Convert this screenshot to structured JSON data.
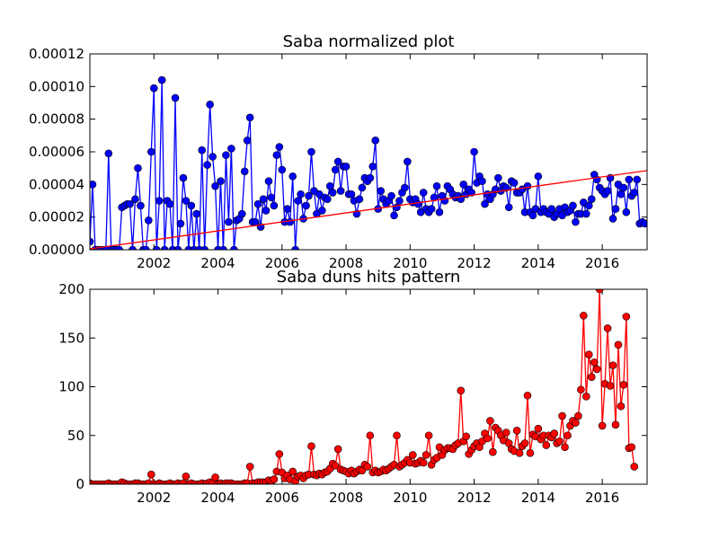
{
  "chart_data": [
    {
      "type": "line",
      "title": "Saba normalized plot",
      "xlabel": "",
      "ylabel": "",
      "xlim": [
        2000.0,
        2017.4
      ],
      "ylim": [
        0,
        0.00012
      ],
      "x_ticks": [
        2002,
        2004,
        2006,
        2008,
        2010,
        2012,
        2014,
        2016
      ],
      "x_tick_labels": [
        "2002",
        "2004",
        "2006",
        "2008",
        "2010",
        "2012",
        "2014",
        "2016"
      ],
      "y_ticks": [
        0,
        2e-05,
        4e-05,
        6e-05,
        8e-05,
        0.0001,
        0.00012
      ],
      "y_tick_labels": [
        "0.00000",
        "0.00002",
        "0.00004",
        "0.00006",
        "0.00008",
        "0.00010",
        "0.00012"
      ],
      "grid": false,
      "series": [
        {
          "color": "#0000ff",
          "marker": "circle",
          "x_start": 2000.0,
          "step": 0.0833333,
          "values": [
            5e-06,
            4e-05,
            0,
            0,
            0,
            0,
            0,
            5.9e-05,
            0,
            0,
            0,
            0,
            2.6e-05,
            2.7e-05,
            2.8e-05,
            2.8e-05,
            0,
            3.1e-05,
            5e-05,
            2.7e-05,
            0,
            0,
            1.8e-05,
            6e-05,
            9.9e-05,
            0,
            3e-05,
            0.000104,
            0,
            3e-05,
            2.8e-05,
            0,
            9.3e-05,
            0,
            1.6e-05,
            4.4e-05,
            3e-05,
            0,
            2.7e-05,
            0,
            2.2e-05,
            0,
            6.1e-05,
            0,
            5.2e-05,
            8.9e-05,
            5.7e-05,
            3.9e-05,
            0,
            4.2e-05,
            0,
            5.8e-05,
            1.7e-05,
            6.2e-05,
            0,
            1.8e-05,
            1.9e-05,
            2.2e-05,
            4.8e-05,
            6.7e-05,
            8.1e-05,
            1.7e-05,
            1.7e-05,
            2.8e-05,
            1.4e-05,
            3.1e-05,
            2.4e-05,
            4.2e-05,
            3.2e-05,
            2.7e-05,
            5.8e-05,
            6.3e-05,
            4.9e-05,
            1.7e-05,
            2.5e-05,
            1.7e-05,
            4.5e-05,
            0,
            3e-05,
            3.4e-05,
            1.9e-05,
            2.7e-05,
            3.3e-05,
            6e-05,
            3.6e-05,
            2.2e-05,
            3.4e-05,
            2.4e-05,
            3.2e-05,
            3.1e-05,
            3.9e-05,
            3.5e-05,
            4.9e-05,
            5.4e-05,
            3.6e-05,
            5.1e-05,
            5.1e-05,
            3.4e-05,
            3.4e-05,
            3e-05,
            2.2e-05,
            3.1e-05,
            3.8e-05,
            4.4e-05,
            4.2e-05,
            4.4e-05,
            5.1e-05,
            6.7e-05,
            2.5e-05,
            3.6e-05,
            3.1e-05,
            2.8e-05,
            3e-05,
            3.3e-05,
            2.1e-05,
            2.6e-05,
            3e-05,
            3.5e-05,
            3.8e-05,
            5.4e-05,
            3.1e-05,
            2.9e-05,
            3.1e-05,
            2.8e-05,
            2.3e-05,
            3.5e-05,
            2.5e-05,
            2.3e-05,
            2.5e-05,
            3.2e-05,
            3.9e-05,
            2.3e-05,
            3.3e-05,
            3e-05,
            3.9e-05,
            3.7e-05,
            3.4e-05,
            3.2e-05,
            3.3e-05,
            3.1e-05,
            4e-05,
            3.4e-05,
            3.7e-05,
            3.5e-05,
            6e-05,
            4.1e-05,
            4.5e-05,
            4.2e-05,
            2.8e-05,
            3.4e-05,
            3.1e-05,
            3.4e-05,
            3.7e-05,
            4.4e-05,
            3.6e-05,
            3.9e-05,
            3.8e-05,
            2.6e-05,
            4.2e-05,
            4.1e-05,
            3.5e-05,
            3.5e-05,
            3.7e-05,
            2.3e-05,
            3.9e-05,
            2.3e-05,
            2.1e-05,
            2.5e-05,
            4.5e-05,
            2.3e-05,
            2.5e-05,
            2.3e-05,
            2.2e-05,
            2.5e-05,
            2e-05,
            2.2e-05,
            2.5e-05,
            2.1e-05,
            2.6e-05,
            2.3e-05,
            2.4e-05,
            2.7e-05,
            1.7e-05,
            2.2e-05,
            2.2e-05,
            2.9e-05,
            2.2e-05,
            2.7e-05,
            3.1e-05,
            4.6e-05,
            4.3e-05,
            3.8e-05,
            3.6e-05,
            3.4e-05,
            3.6e-05,
            4.4e-05,
            1.9e-05,
            2.5e-05,
            4e-05,
            3.4e-05,
            3.8e-05,
            2.3e-05,
            4.3e-05,
            3.3e-05,
            3.5e-05,
            4.3e-05,
            1.6e-05,
            1.7e-05,
            1.6e-05
          ]
        },
        {
          "color": "#ff0000",
          "marker": "none",
          "x": [
            2000.0,
            2017.4
          ],
          "values": [
            5e-07,
            4.85e-05
          ]
        }
      ]
    },
    {
      "type": "line",
      "title": "Saba duns hits pattern",
      "xlabel": "",
      "ylabel": "",
      "xlim": [
        2000.0,
        2017.4
      ],
      "ylim": [
        0,
        200
      ],
      "x_ticks": [
        2002,
        2004,
        2006,
        2008,
        2010,
        2012,
        2014,
        2016
      ],
      "x_tick_labels": [
        "2002",
        "2004",
        "2006",
        "2008",
        "2010",
        "2012",
        "2014",
        "2016"
      ],
      "y_ticks": [
        0,
        50,
        100,
        150,
        200
      ],
      "y_tick_labels": [
        "0",
        "50",
        "100",
        "150",
        "200"
      ],
      "grid": false,
      "series": [
        {
          "color": "#ff0000",
          "marker": "circle",
          "x_start": 2000.0,
          "step": 0.0833333,
          "values": [
            1,
            0,
            0,
            0,
            0,
            0,
            0,
            1,
            0,
            0,
            0,
            0,
            2,
            1,
            0,
            0,
            0,
            1,
            1,
            0,
            0,
            0,
            1,
            10,
            0,
            0,
            1,
            0,
            0,
            0,
            1,
            0,
            0,
            1,
            0,
            1,
            8,
            0,
            1,
            0,
            0,
            0,
            1,
            0,
            1,
            2,
            1,
            7,
            0,
            1,
            0,
            1,
            1,
            1,
            0,
            0,
            0,
            0,
            1,
            1,
            18,
            1,
            1,
            2,
            2,
            2,
            2,
            4,
            3,
            5,
            13,
            31,
            12,
            6,
            9,
            5,
            13,
            3,
            8,
            9,
            6,
            9,
            10,
            39,
            10,
            9,
            11,
            10,
            12,
            13,
            16,
            21,
            19,
            36,
            15,
            14,
            13,
            11,
            14,
            11,
            13,
            15,
            14,
            20,
            18,
            50,
            12,
            14,
            12,
            13,
            15,
            14,
            16,
            18,
            20,
            50,
            18,
            20,
            22,
            25,
            22,
            30,
            21,
            22,
            24,
            22,
            30,
            50,
            20,
            25,
            27,
            38,
            30,
            35,
            37,
            37,
            36,
            40,
            42,
            96,
            44,
            49,
            31,
            35,
            39,
            42,
            38,
            44,
            52,
            47,
            65,
            33,
            58,
            55,
            50,
            45,
            53,
            42,
            36,
            34,
            55,
            32,
            39,
            42,
            91,
            32,
            51,
            49,
            57,
            46,
            50,
            40,
            50,
            48,
            52,
            42,
            44,
            70,
            38,
            50,
            60,
            65,
            63,
            70,
            97,
            173,
            90,
            133,
            110,
            125,
            118,
            200,
            60,
            103,
            160,
            101,
            122,
            61,
            143,
            80,
            102,
            172,
            37,
            38,
            18
          ]
        }
      ]
    }
  ]
}
